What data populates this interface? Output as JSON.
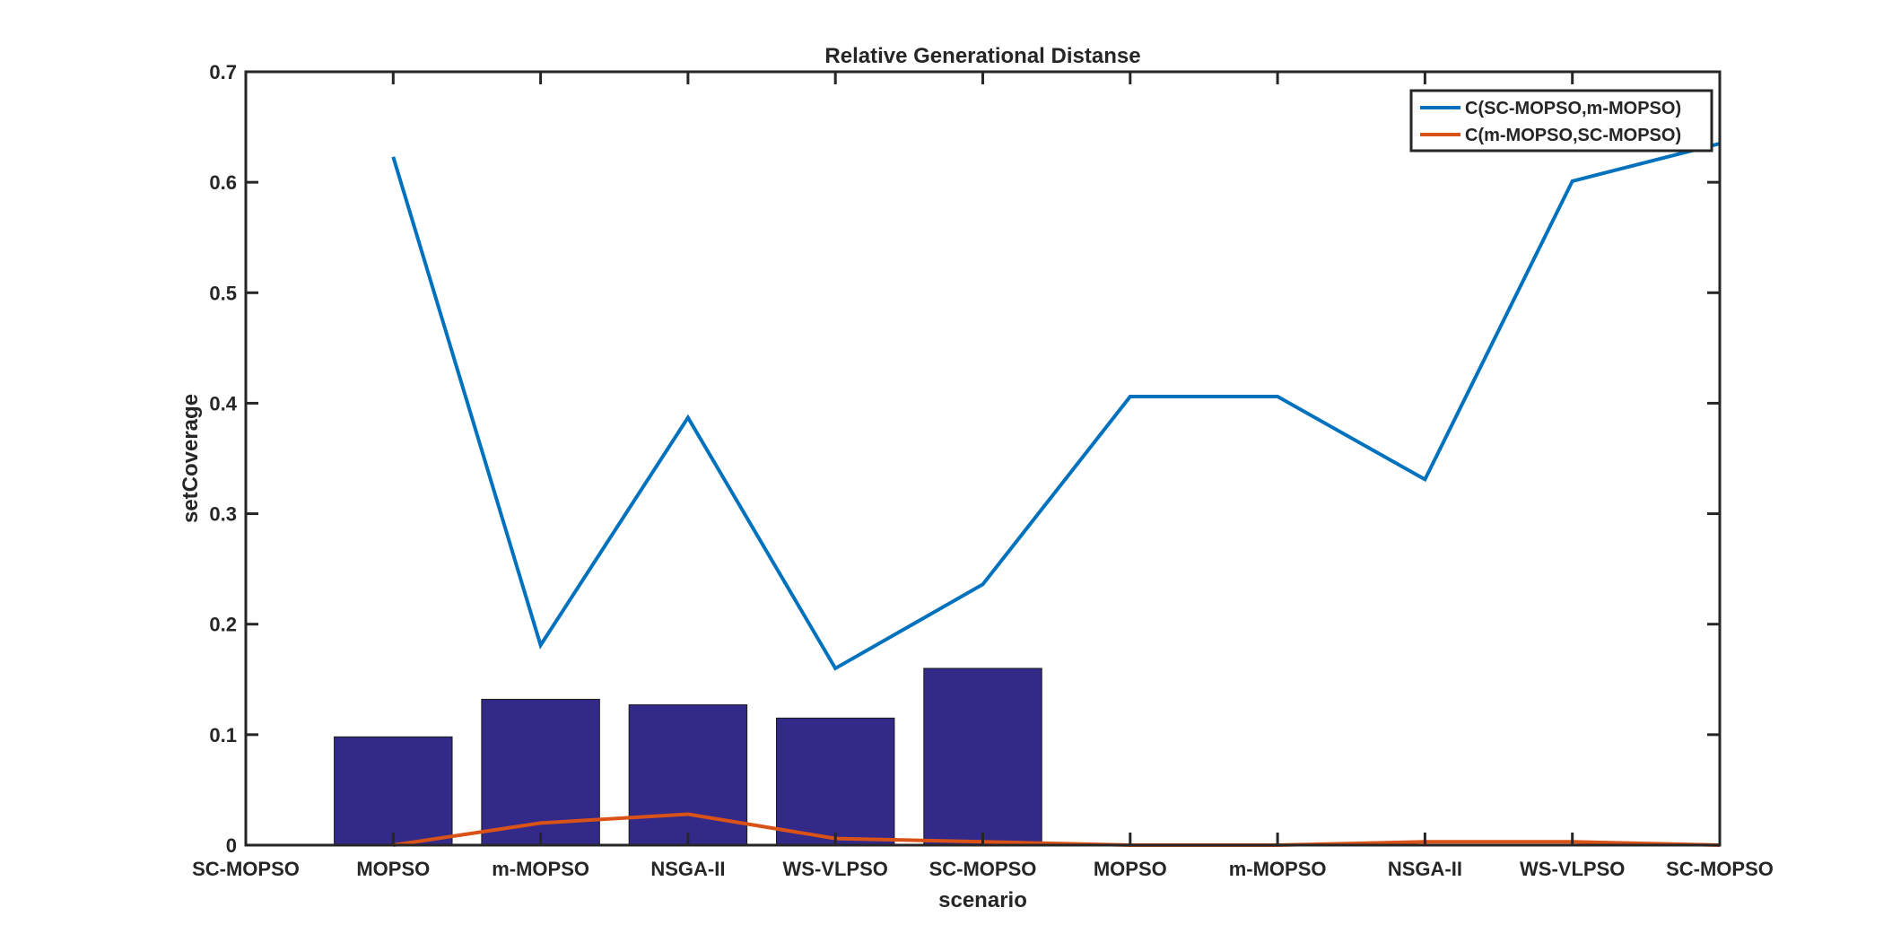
{
  "chart_data": {
    "type": "bar",
    "title": "Relative Generational Distanse",
    "xlabel": "scenario",
    "ylabel": "setCoverage",
    "ylim": [
      0,
      0.7
    ],
    "yticks": [
      "0",
      "0.1",
      "0.2",
      "0.3",
      "0.4",
      "0.5",
      "0.6",
      "0.7"
    ],
    "categories": [
      "SC-MOPSO",
      "MOPSO",
      "m-MOPSO",
      "NSGA-II",
      "WS-VLPSO",
      "SC-MOPSO",
      "MOPSO",
      "m-MOPSO",
      "NSGA-II",
      "WS-VLPSO",
      "SC-MOPSO"
    ],
    "bars": [
      {
        "category_index": 1,
        "value": 0.098
      },
      {
        "category_index": 2,
        "value": 0.132
      },
      {
        "category_index": 3,
        "value": 0.127
      },
      {
        "category_index": 4,
        "value": 0.115
      },
      {
        "category_index": 5,
        "value": 0.16
      }
    ],
    "series": [
      {
        "name": "C(SC-MOPSO,m-MOPSO)",
        "color": "#0072BD",
        "values": [
          null,
          0.623,
          0.181,
          0.387,
          0.16,
          0.236,
          0.406,
          0.406,
          0.331,
          0.601,
          0.635
        ]
      },
      {
        "name": "C(m-MOPSO,SC-MOPSO)",
        "color": "#D95319",
        "values": [
          null,
          0.0,
          0.02,
          0.028,
          0.006,
          0.003,
          0.0,
          0.0,
          0.003,
          0.003,
          0.0
        ]
      }
    ],
    "bar_color": "#332988",
    "grid": false,
    "legend_position": "top-right"
  }
}
